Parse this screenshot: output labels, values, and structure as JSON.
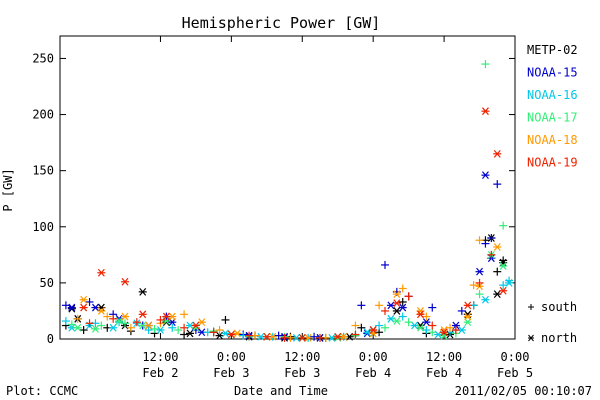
{
  "footer": {
    "left": "Plot: CCMC",
    "right": "2011/02/05 00:10:07"
  },
  "chart_data": {
    "type": "scatter",
    "title": "Hemispheric Power [GW]",
    "xlabel": "Date and Time",
    "ylabel": "P [GW]",
    "xlim": [
      "2011-02-01T19:00",
      "2011-02-05T00:00"
    ],
    "ylim": [
      0,
      270
    ],
    "yticks": [
      0,
      50,
      100,
      150,
      200,
      250
    ],
    "xticks": [
      {
        "t": "2011-02-02T12:00",
        "top": "12:00",
        "bottom": "Feb 2"
      },
      {
        "t": "2011-02-03T00:00",
        "top": "0:00",
        "bottom": "Feb 3"
      },
      {
        "t": "2011-02-03T12:00",
        "top": "12:00",
        "bottom": "Feb 3"
      },
      {
        "t": "2011-02-04T00:00",
        "top": "0:00",
        "bottom": "Feb 4"
      },
      {
        "t": "2011-02-04T12:00",
        "top": "12:00",
        "bottom": "Feb 4"
      },
      {
        "t": "2011-02-05T00:00",
        "top": "0:00",
        "bottom": "Feb 5"
      }
    ],
    "legend_position": "right",
    "marker_legend": [
      {
        "marker": "+",
        "label": "south"
      },
      {
        "marker": "*",
        "label": "north"
      }
    ],
    "series": [
      {
        "name": "METP-02",
        "color": "#000000",
        "south": [
          [
            "2011-02-01T20:00",
            12
          ],
          [
            "2011-02-01T23:00",
            8
          ],
          [
            "2011-02-02T03:00",
            10
          ],
          [
            "2011-02-02T07:00",
            7
          ],
          [
            "2011-02-02T11:00",
            5
          ],
          [
            "2011-02-02T16:00",
            4
          ],
          [
            "2011-02-02T21:00",
            6
          ],
          [
            "2011-02-02T23:00",
            17
          ],
          [
            "2011-02-03T04:00",
            3
          ],
          [
            "2011-02-03T10:00",
            2
          ],
          [
            "2011-02-03T16:00",
            1
          ],
          [
            "2011-02-03T21:00",
            3
          ],
          [
            "2011-02-03T22:00",
            10
          ],
          [
            "2011-02-04T01:00",
            6
          ],
          [
            "2011-02-04T05:00",
            33
          ],
          [
            "2011-02-04T09:00",
            5
          ],
          [
            "2011-02-04T14:00",
            8
          ],
          [
            "2011-02-04T17:00",
            30
          ],
          [
            "2011-02-04T19:00",
            88
          ],
          [
            "2011-02-04T21:00",
            60
          ],
          [
            "2011-02-04T22:00",
            70
          ]
        ],
        "north": [
          [
            "2011-02-01T21:00",
            27
          ],
          [
            "2011-02-01T22:00",
            18
          ],
          [
            "2011-02-02T02:00",
            28
          ],
          [
            "2011-02-02T06:00",
            12
          ],
          [
            "2011-02-02T09:00",
            42
          ],
          [
            "2011-02-02T13:00",
            15
          ],
          [
            "2011-02-02T17:00",
            5
          ],
          [
            "2011-02-02T22:00",
            3
          ],
          [
            "2011-02-03T03:00",
            2
          ],
          [
            "2011-02-03T09:00",
            1
          ],
          [
            "2011-02-03T15:00",
            1
          ],
          [
            "2011-02-03T20:00",
            2
          ],
          [
            "2011-02-04T00:00",
            8
          ],
          [
            "2011-02-04T04:00",
            25
          ],
          [
            "2011-02-04T08:00",
            12
          ],
          [
            "2011-02-04T13:00",
            4
          ],
          [
            "2011-02-04T16:00",
            22
          ],
          [
            "2011-02-04T20:00",
            90
          ],
          [
            "2011-02-04T21:00",
            40
          ],
          [
            "2011-02-04T22:00",
            68
          ]
        ]
      },
      {
        "name": "NOAA-15",
        "color": "#0000cc",
        "south": [
          [
            "2011-02-01T20:00",
            30
          ],
          [
            "2011-02-02T00:00",
            33
          ],
          [
            "2011-02-02T04:00",
            22
          ],
          [
            "2011-02-02T09:00",
            12
          ],
          [
            "2011-02-02T13:00",
            20
          ],
          [
            "2011-02-02T18:00",
            8
          ],
          [
            "2011-02-03T02:00",
            4
          ],
          [
            "2011-02-03T08:00",
            3
          ],
          [
            "2011-02-03T14:00",
            2
          ],
          [
            "2011-02-03T22:00",
            30
          ],
          [
            "2011-02-04T02:00",
            66
          ],
          [
            "2011-02-04T04:00",
            42
          ],
          [
            "2011-02-04T06:00",
            38
          ],
          [
            "2011-02-04T10:00",
            28
          ],
          [
            "2011-02-04T15:00",
            25
          ],
          [
            "2011-02-04T19:00",
            85
          ],
          [
            "2011-02-04T20:00",
            90
          ],
          [
            "2011-02-04T21:00",
            138
          ]
        ],
        "north": [
          [
            "2011-02-01T21:00",
            28
          ],
          [
            "2011-02-02T01:00",
            28
          ],
          [
            "2011-02-02T05:00",
            18
          ],
          [
            "2011-02-02T10:00",
            12
          ],
          [
            "2011-02-02T14:00",
            15
          ],
          [
            "2011-02-02T19:00",
            6
          ],
          [
            "2011-02-03T03:00",
            3
          ],
          [
            "2011-02-03T09:00",
            2
          ],
          [
            "2011-02-03T15:00",
            1
          ],
          [
            "2011-02-03T23:00",
            5
          ],
          [
            "2011-02-04T03:00",
            30
          ],
          [
            "2011-02-04T05:00",
            28
          ],
          [
            "2011-02-04T09:00",
            15
          ],
          [
            "2011-02-04T14:00",
            12
          ],
          [
            "2011-02-04T18:00",
            60
          ],
          [
            "2011-02-04T19:00",
            146
          ],
          [
            "2011-02-04T20:00",
            72
          ]
        ]
      },
      {
        "name": "NOAA-16",
        "color": "#00c8e6",
        "south": [
          [
            "2011-02-01T20:00",
            16
          ],
          [
            "2011-02-02T01:00",
            14
          ],
          [
            "2011-02-02T05:00",
            15
          ],
          [
            "2011-02-02T10:00",
            8
          ],
          [
            "2011-02-02T14:00",
            10
          ],
          [
            "2011-02-02T20:00",
            6
          ],
          [
            "2011-02-03T02:00",
            3
          ],
          [
            "2011-02-03T07:00",
            2
          ],
          [
            "2011-02-03T13:00",
            1
          ],
          [
            "2011-02-03T19:00",
            2
          ],
          [
            "2011-02-04T01:00",
            12
          ],
          [
            "2011-02-04T05:00",
            20
          ],
          [
            "2011-02-04T09:00",
            8
          ],
          [
            "2011-02-04T13:00",
            6
          ],
          [
            "2011-02-04T17:00",
            30
          ],
          [
            "2011-02-04T22:00",
            48
          ],
          [
            "2011-02-04T23:00",
            52
          ]
        ],
        "north": [
          [
            "2011-02-01T21:00",
            10
          ],
          [
            "2011-02-02T00:00",
            12
          ],
          [
            "2011-02-02T04:00",
            10
          ],
          [
            "2011-02-02T08:00",
            14
          ],
          [
            "2011-02-02T12:00",
            8
          ],
          [
            "2011-02-02T17:00",
            12
          ],
          [
            "2011-02-02T23:00",
            5
          ],
          [
            "2011-02-03T05:00",
            2
          ],
          [
            "2011-02-03T11:00",
            1
          ],
          [
            "2011-02-03T17:00",
            1
          ],
          [
            "2011-02-03T23:00",
            6
          ],
          [
            "2011-02-04T03:00",
            18
          ],
          [
            "2011-02-04T07:00",
            12
          ],
          [
            "2011-02-04T11:00",
            4
          ],
          [
            "2011-02-04T15:00",
            8
          ],
          [
            "2011-02-04T19:00",
            35
          ],
          [
            "2011-02-04T23:00",
            50
          ]
        ]
      },
      {
        "name": "NOAA-17",
        "color": "#33ee77",
        "south": [
          [
            "2011-02-01T21:00",
            13
          ],
          [
            "2011-02-02T02:00",
            12
          ],
          [
            "2011-02-02T06:00",
            14
          ],
          [
            "2011-02-02T11:00",
            9
          ],
          [
            "2011-02-02T15:00",
            8
          ],
          [
            "2011-02-02T21:00",
            7
          ],
          [
            "2011-02-03T03:00",
            2
          ],
          [
            "2011-02-03T09:00",
            2
          ],
          [
            "2011-02-03T15:00",
            1
          ],
          [
            "2011-02-03T21:00",
            3
          ],
          [
            "2011-02-04T02:00",
            10
          ],
          [
            "2011-02-04T06:00",
            15
          ],
          [
            "2011-02-04T10:00",
            6
          ],
          [
            "2011-02-04T14:00",
            5
          ],
          [
            "2011-02-04T18:00",
            40
          ],
          [
            "2011-02-04T19:00",
            245
          ],
          [
            "2011-02-04T22:00",
            101
          ]
        ],
        "north": [
          [
            "2011-02-01T22:00",
            10
          ],
          [
            "2011-02-02T01:00",
            9
          ],
          [
            "2011-02-02T05:00",
            16
          ],
          [
            "2011-02-02T09:00",
            12
          ],
          [
            "2011-02-02T13:00",
            16
          ],
          [
            "2011-02-02T18:00",
            10
          ],
          [
            "2011-02-03T00:00",
            4
          ],
          [
            "2011-02-03T06:00",
            2
          ],
          [
            "2011-02-03T12:00",
            1
          ],
          [
            "2011-02-03T18:00",
            1
          ],
          [
            "2011-02-04T00:00",
            5
          ],
          [
            "2011-02-04T04:00",
            16
          ],
          [
            "2011-02-04T08:00",
            10
          ],
          [
            "2011-02-04T12:00",
            3
          ],
          [
            "2011-02-04T16:00",
            15
          ],
          [
            "2011-02-04T20:00",
            75
          ],
          [
            "2011-02-04T22:00",
            65
          ]
        ]
      },
      {
        "name": "NOAA-18",
        "color": "#ff9900",
        "south": [
          [
            "2011-02-01T22:00",
            18
          ],
          [
            "2011-02-02T03:00",
            20
          ],
          [
            "2011-02-02T07:00",
            10
          ],
          [
            "2011-02-02T12:00",
            14
          ],
          [
            "2011-02-02T16:00",
            22
          ],
          [
            "2011-02-02T22:00",
            8
          ],
          [
            "2011-02-03T04:00",
            3
          ],
          [
            "2011-02-03T10:00",
            1
          ],
          [
            "2011-02-03T16:00",
            1
          ],
          [
            "2011-02-03T21:00",
            12
          ],
          [
            "2011-02-04T01:00",
            30
          ],
          [
            "2011-02-04T05:00",
            45
          ],
          [
            "2011-02-04T09:00",
            20
          ],
          [
            "2011-02-04T13:00",
            10
          ],
          [
            "2011-02-04T17:00",
            48
          ],
          [
            "2011-02-04T18:00",
            88
          ]
        ],
        "north": [
          [
            "2011-02-01T23:00",
            35
          ],
          [
            "2011-02-02T02:00",
            25
          ],
          [
            "2011-02-02T06:00",
            20
          ],
          [
            "2011-02-02T10:00",
            12
          ],
          [
            "2011-02-02T14:00",
            20
          ],
          [
            "2011-02-02T19:00",
            15
          ],
          [
            "2011-02-03T01:00",
            5
          ],
          [
            "2011-02-03T07:00",
            2
          ],
          [
            "2011-02-03T13:00",
            1
          ],
          [
            "2011-02-03T19:00",
            2
          ],
          [
            "2011-02-04T00:00",
            5
          ],
          [
            "2011-02-04T04:00",
            40
          ],
          [
            "2011-02-04T08:00",
            25
          ],
          [
            "2011-02-04T12:00",
            8
          ],
          [
            "2011-02-04T16:00",
            20
          ],
          [
            "2011-02-04T18:00",
            47
          ],
          [
            "2011-02-04T21:00",
            82
          ]
        ]
      },
      {
        "name": "NOAA-19",
        "color": "#ee2200",
        "south": [
          [
            "2011-02-02T00:00",
            14
          ],
          [
            "2011-02-02T04:00",
            18
          ],
          [
            "2011-02-02T08:00",
            15
          ],
          [
            "2011-02-02T12:00",
            17
          ],
          [
            "2011-02-02T16:00",
            10
          ],
          [
            "2011-02-02T21:00",
            6
          ],
          [
            "2011-02-03T03:00",
            3
          ],
          [
            "2011-02-03T09:00",
            1
          ],
          [
            "2011-02-03T15:00",
            1
          ],
          [
            "2011-02-03T21:00",
            4
          ],
          [
            "2011-02-04T02:00",
            25
          ],
          [
            "2011-02-04T06:00",
            38
          ],
          [
            "2011-02-04T10:00",
            12
          ],
          [
            "2011-02-04T14:00",
            8
          ],
          [
            "2011-02-04T18:00",
            50
          ],
          [
            "2011-02-04T20:00",
            75
          ]
        ],
        "north": [
          [
            "2011-02-01T23:00",
            28
          ],
          [
            "2011-02-02T02:00",
            59
          ],
          [
            "2011-02-02T06:00",
            51
          ],
          [
            "2011-02-02T09:00",
            22
          ],
          [
            "2011-02-02T13:00",
            20
          ],
          [
            "2011-02-02T18:00",
            12
          ],
          [
            "2011-02-03T00:00",
            4
          ],
          [
            "2011-02-03T06:00",
            2
          ],
          [
            "2011-02-03T12:00",
            1
          ],
          [
            "2011-02-03T18:00",
            2
          ],
          [
            "2011-02-04T00:00",
            8
          ],
          [
            "2011-02-04T04:00",
            32
          ],
          [
            "2011-02-04T08:00",
            22
          ],
          [
            "2011-02-04T12:00",
            6
          ],
          [
            "2011-02-04T16:00",
            30
          ],
          [
            "2011-02-04T19:00",
            203
          ],
          [
            "2011-02-04T21:00",
            165
          ],
          [
            "2011-02-04T22:00",
            43
          ]
        ]
      }
    ]
  }
}
